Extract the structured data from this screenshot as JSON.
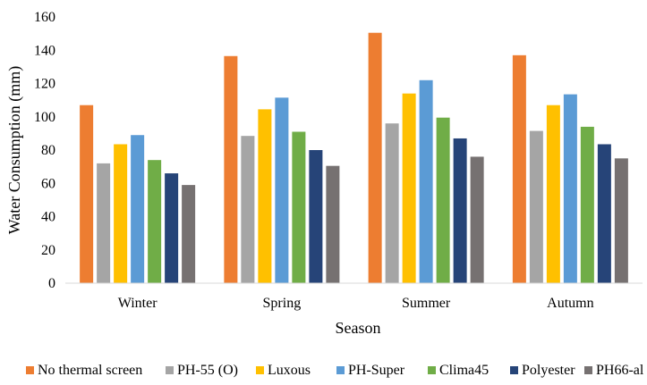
{
  "chart_data": {
    "type": "bar",
    "title": "",
    "xlabel": "Season",
    "ylabel": "Water Consumption (mm)",
    "ylim": [
      0,
      160
    ],
    "yticks": [
      0,
      20,
      40,
      60,
      80,
      100,
      120,
      140,
      160
    ],
    "grid": false,
    "legend_position": "bottom",
    "categories": [
      "Winter",
      "Spring",
      "Summer",
      "Autumn"
    ],
    "series": [
      {
        "name": "No thermal screen",
        "color": "#ED7D31",
        "values": [
          107,
          136.5,
          150.5,
          137
        ]
      },
      {
        "name": "PH-55 (O)",
        "color": "#A5A5A5",
        "values": [
          72,
          88.5,
          96,
          91.5
        ]
      },
      {
        "name": "Luxous",
        "color": "#FFC000",
        "values": [
          83.5,
          104.5,
          114,
          107
        ]
      },
      {
        "name": "PH-Super",
        "color": "#5B9BD5",
        "values": [
          89,
          111.5,
          122,
          113.5
        ]
      },
      {
        "name": "Clima45",
        "color": "#70AD47",
        "values": [
          74,
          91,
          99.5,
          94
        ]
      },
      {
        "name": "Polyester",
        "color": "#264478",
        "values": [
          66,
          80,
          87,
          83.5
        ]
      },
      {
        "name": "PH66-al",
        "color": "#767171",
        "values": [
          59,
          70.5,
          76,
          75
        ]
      }
    ]
  }
}
